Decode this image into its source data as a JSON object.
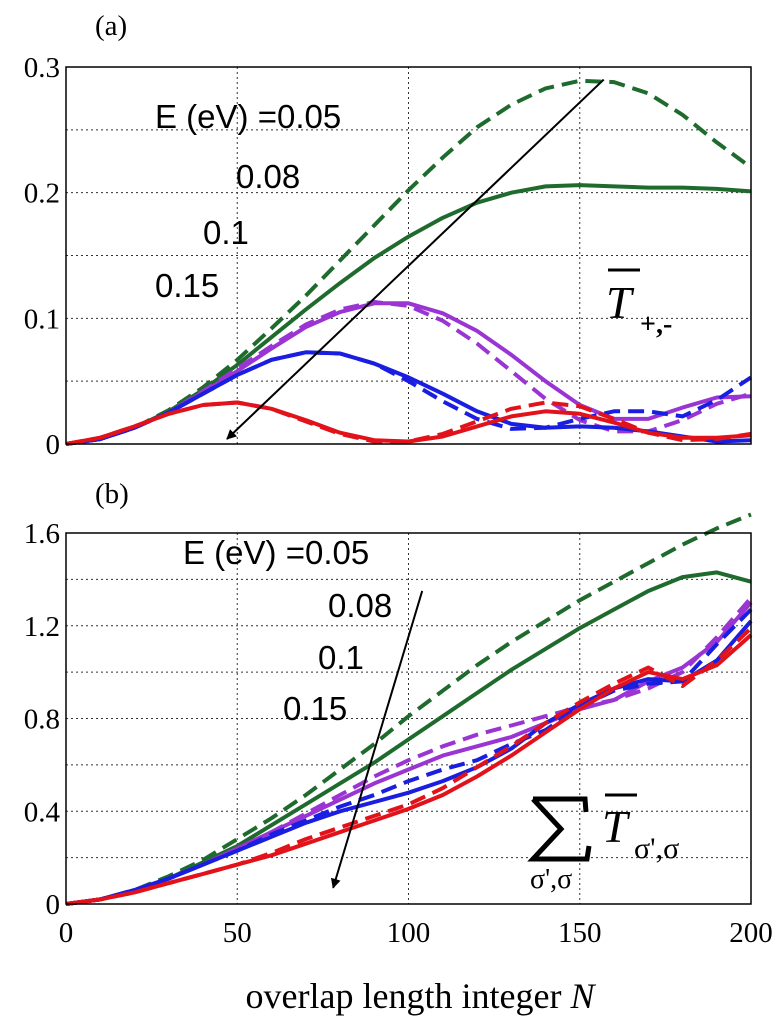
{
  "figure": {
    "xlabel_text": "overlap length integer ",
    "xlabel_var": "N"
  },
  "chart_data": [
    {
      "panel": "(a)",
      "type": "line",
      "xlim": [
        0,
        200
      ],
      "ylim": [
        0,
        0.3
      ],
      "grid": true,
      "xticks": [
        "0",
        "50",
        "100",
        "150",
        "200"
      ],
      "yticks": [
        "0",
        "0.1",
        "0.2",
        "0.3"
      ],
      "quantity_symbol": "T",
      "quantity_subscript": "+,-",
      "energy_labels": [
        "E (eV) =0.05",
        "0.08",
        "0.1",
        "0.15"
      ],
      "arrow": {
        "from": [
          157,
          0.29
        ],
        "to": [
          47,
          0.004
        ]
      },
      "series": [
        {
          "name": "0.05",
          "style": "dashed",
          "color": "#1f6b2d",
          "x": [
            0,
            10,
            20,
            30,
            40,
            50,
            60,
            70,
            80,
            90,
            100,
            110,
            120,
            130,
            140,
            150,
            160,
            170,
            180,
            190,
            200
          ],
          "y": [
            0,
            0.004,
            0.013,
            0.027,
            0.045,
            0.067,
            0.092,
            0.118,
            0.146,
            0.174,
            0.202,
            0.228,
            0.252,
            0.27,
            0.283,
            0.289,
            0.288,
            0.279,
            0.262,
            0.24,
            0.22
          ]
        },
        {
          "name": "0.05",
          "style": "solid",
          "color": "#1f6b2d",
          "x": [
            0,
            10,
            20,
            30,
            40,
            50,
            60,
            70,
            80,
            90,
            100,
            110,
            120,
            130,
            140,
            150,
            160,
            170,
            180,
            190,
            200
          ],
          "y": [
            0,
            0.004,
            0.013,
            0.026,
            0.043,
            0.063,
            0.085,
            0.107,
            0.128,
            0.148,
            0.165,
            0.18,
            0.192,
            0.2,
            0.205,
            0.206,
            0.205,
            0.204,
            0.204,
            0.203,
            0.201
          ]
        },
        {
          "name": "0.08",
          "style": "dashed",
          "color": "#9a35d4",
          "x": [
            0,
            10,
            20,
            30,
            40,
            50,
            60,
            70,
            80,
            90,
            100,
            110,
            120,
            130,
            140,
            150,
            160,
            170,
            180,
            190,
            200
          ],
          "y": [
            0,
            0.004,
            0.013,
            0.025,
            0.042,
            0.06,
            0.078,
            0.095,
            0.107,
            0.113,
            0.11,
            0.098,
            0.08,
            0.058,
            0.036,
            0.019,
            0.01,
            0.01,
            0.019,
            0.032,
            0.04
          ]
        },
        {
          "name": "0.08",
          "style": "solid",
          "color": "#9a35d4",
          "x": [
            0,
            10,
            20,
            30,
            40,
            50,
            60,
            70,
            80,
            90,
            100,
            110,
            120,
            130,
            140,
            150,
            160,
            170,
            180,
            190,
            200
          ],
          "y": [
            0,
            0.004,
            0.013,
            0.025,
            0.041,
            0.058,
            0.076,
            0.093,
            0.105,
            0.112,
            0.112,
            0.104,
            0.09,
            0.071,
            0.05,
            0.031,
            0.02,
            0.02,
            0.029,
            0.037,
            0.038
          ]
        },
        {
          "name": "0.1",
          "style": "dashed",
          "color": "#1a1ee0",
          "x": [
            0,
            10,
            20,
            30,
            40,
            50,
            60,
            70,
            80,
            90,
            100,
            110,
            120,
            130,
            140,
            150,
            160,
            170,
            180,
            190,
            200
          ],
          "y": [
            0,
            0.004,
            0.013,
            0.025,
            0.04,
            0.055,
            0.067,
            0.073,
            0.072,
            0.064,
            0.05,
            0.034,
            0.02,
            0.012,
            0.013,
            0.02,
            0.026,
            0.026,
            0.022,
            0.035,
            0.053
          ]
        },
        {
          "name": "0.1",
          "style": "solid",
          "color": "#1a1ee0",
          "x": [
            0,
            10,
            20,
            30,
            40,
            50,
            60,
            70,
            80,
            90,
            100,
            110,
            120,
            130,
            140,
            150,
            160,
            170,
            180,
            190,
            200
          ],
          "y": [
            0,
            0.004,
            0.013,
            0.025,
            0.04,
            0.055,
            0.067,
            0.073,
            0.072,
            0.064,
            0.053,
            0.04,
            0.026,
            0.016,
            0.013,
            0.014,
            0.013,
            0.01,
            0.006,
            0.002,
            0.003
          ]
        },
        {
          "name": "0.15",
          "style": "dashed",
          "color": "#e2121a",
          "x": [
            0,
            10,
            20,
            30,
            40,
            50,
            60,
            70,
            80,
            90,
            100,
            110,
            120,
            130,
            140,
            150,
            160,
            170,
            180,
            190,
            200
          ],
          "y": [
            0,
            0.005,
            0.014,
            0.024,
            0.031,
            0.033,
            0.028,
            0.018,
            0.008,
            0.002,
            0.002,
            0.008,
            0.018,
            0.028,
            0.033,
            0.03,
            0.02,
            0.009,
            0.003,
            0.004,
            0.008
          ]
        },
        {
          "name": "0.15",
          "style": "solid",
          "color": "#e2121a",
          "x": [
            0,
            10,
            20,
            30,
            40,
            50,
            60,
            70,
            80,
            90,
            100,
            110,
            120,
            130,
            140,
            150,
            160,
            170,
            180,
            190,
            200
          ],
          "y": [
            0,
            0.005,
            0.014,
            0.024,
            0.031,
            0.033,
            0.028,
            0.019,
            0.009,
            0.003,
            0.002,
            0.006,
            0.014,
            0.022,
            0.026,
            0.024,
            0.017,
            0.009,
            0.005,
            0.005,
            0.007
          ]
        }
      ]
    },
    {
      "panel": "(b)",
      "type": "line",
      "xlim": [
        0,
        200
      ],
      "ylim": [
        0,
        1.6
      ],
      "grid": true,
      "xticks": [
        "0",
        "50",
        "100",
        "150",
        "200"
      ],
      "yticks": [
        "0",
        "0.4",
        "0.8",
        "1.2",
        "1.6"
      ],
      "quantity_symbol": "T",
      "quantity_subscript": "σ',σ",
      "sum_subscript": "σ',σ",
      "energy_labels": [
        "E (eV) =0.05",
        "0.08",
        "0.1",
        "0.15"
      ],
      "arrow": {
        "from": [
          104,
          1.35
        ],
        "to": [
          78,
          0.07
        ]
      },
      "series": [
        {
          "name": "0.05",
          "style": "dashed",
          "color": "#1f6b2d",
          "x": [
            0,
            10,
            20,
            30,
            40,
            50,
            60,
            70,
            80,
            90,
            100,
            110,
            120,
            130,
            140,
            150,
            160,
            170,
            180,
            190,
            200
          ],
          "y": [
            0,
            0.02,
            0.06,
            0.12,
            0.19,
            0.28,
            0.37,
            0.47,
            0.58,
            0.69,
            0.81,
            0.92,
            1.03,
            1.13,
            1.22,
            1.31,
            1.39,
            1.47,
            1.55,
            1.62,
            1.68
          ]
        },
        {
          "name": "0.05",
          "style": "solid",
          "color": "#1f6b2d",
          "x": [
            0,
            10,
            20,
            30,
            40,
            50,
            60,
            70,
            80,
            90,
            100,
            110,
            120,
            130,
            140,
            150,
            160,
            170,
            180,
            190,
            200
          ],
          "y": [
            0,
            0.02,
            0.06,
            0.11,
            0.18,
            0.25,
            0.34,
            0.43,
            0.52,
            0.61,
            0.71,
            0.81,
            0.91,
            1.01,
            1.1,
            1.19,
            1.27,
            1.35,
            1.41,
            1.43,
            1.39
          ]
        },
        {
          "name": "0.08",
          "style": "dashed",
          "color": "#9a35d4",
          "x": [
            0,
            10,
            20,
            30,
            40,
            50,
            60,
            70,
            80,
            90,
            100,
            110,
            120,
            130,
            140,
            150,
            160,
            170,
            180,
            190,
            200
          ],
          "y": [
            0,
            0.02,
            0.06,
            0.11,
            0.17,
            0.24,
            0.31,
            0.39,
            0.47,
            0.55,
            0.62,
            0.68,
            0.73,
            0.77,
            0.81,
            0.85,
            0.88,
            0.93,
            1.0,
            1.15,
            1.32
          ]
        },
        {
          "name": "0.08",
          "style": "solid",
          "color": "#9a35d4",
          "x": [
            0,
            10,
            20,
            30,
            40,
            50,
            60,
            70,
            80,
            90,
            100,
            110,
            120,
            130,
            140,
            150,
            160,
            170,
            180,
            190,
            200
          ],
          "y": [
            0,
            0.02,
            0.06,
            0.11,
            0.17,
            0.24,
            0.31,
            0.38,
            0.45,
            0.52,
            0.58,
            0.64,
            0.68,
            0.72,
            0.78,
            0.84,
            0.88,
            0.96,
            1.02,
            1.13,
            1.3
          ]
        },
        {
          "name": "0.1",
          "style": "dashed",
          "color": "#1a1ee0",
          "x": [
            0,
            10,
            20,
            30,
            40,
            50,
            60,
            70,
            80,
            90,
            100,
            110,
            120,
            130,
            140,
            150,
            160,
            170,
            180,
            190,
            200
          ],
          "y": [
            0,
            0.02,
            0.06,
            0.11,
            0.17,
            0.23,
            0.3,
            0.36,
            0.42,
            0.47,
            0.53,
            0.58,
            0.62,
            0.69,
            0.75,
            0.85,
            0.92,
            0.95,
            0.96,
            1.12,
            1.27
          ]
        },
        {
          "name": "0.1",
          "style": "solid",
          "color": "#1a1ee0",
          "x": [
            0,
            10,
            20,
            30,
            40,
            50,
            60,
            70,
            80,
            90,
            100,
            110,
            120,
            130,
            140,
            150,
            160,
            170,
            180,
            190,
            200
          ],
          "y": [
            0,
            0.02,
            0.06,
            0.11,
            0.17,
            0.23,
            0.29,
            0.35,
            0.4,
            0.44,
            0.48,
            0.53,
            0.59,
            0.67,
            0.78,
            0.86,
            0.93,
            0.97,
            0.96,
            1.05,
            1.22
          ]
        },
        {
          "name": "0.15",
          "style": "dashed",
          "color": "#e2121a",
          "x": [
            0,
            10,
            20,
            30,
            40,
            50,
            60,
            70,
            80,
            90,
            100,
            110,
            120,
            130,
            140,
            150,
            160,
            170,
            180,
            190,
            200
          ],
          "y": [
            0,
            0.02,
            0.05,
            0.09,
            0.13,
            0.17,
            0.22,
            0.28,
            0.33,
            0.38,
            0.43,
            0.5,
            0.59,
            0.68,
            0.78,
            0.87,
            0.95,
            1.02,
            0.94,
            1.05,
            1.19
          ]
        },
        {
          "name": "0.15",
          "style": "solid",
          "color": "#e2121a",
          "x": [
            0,
            10,
            20,
            30,
            40,
            50,
            60,
            70,
            80,
            90,
            100,
            110,
            120,
            130,
            140,
            150,
            160,
            170,
            180,
            190,
            200
          ],
          "y": [
            0,
            0.02,
            0.05,
            0.09,
            0.13,
            0.17,
            0.21,
            0.26,
            0.31,
            0.36,
            0.41,
            0.47,
            0.55,
            0.64,
            0.74,
            0.84,
            0.93,
            1.0,
            0.97,
            1.03,
            1.16
          ]
        }
      ]
    }
  ]
}
